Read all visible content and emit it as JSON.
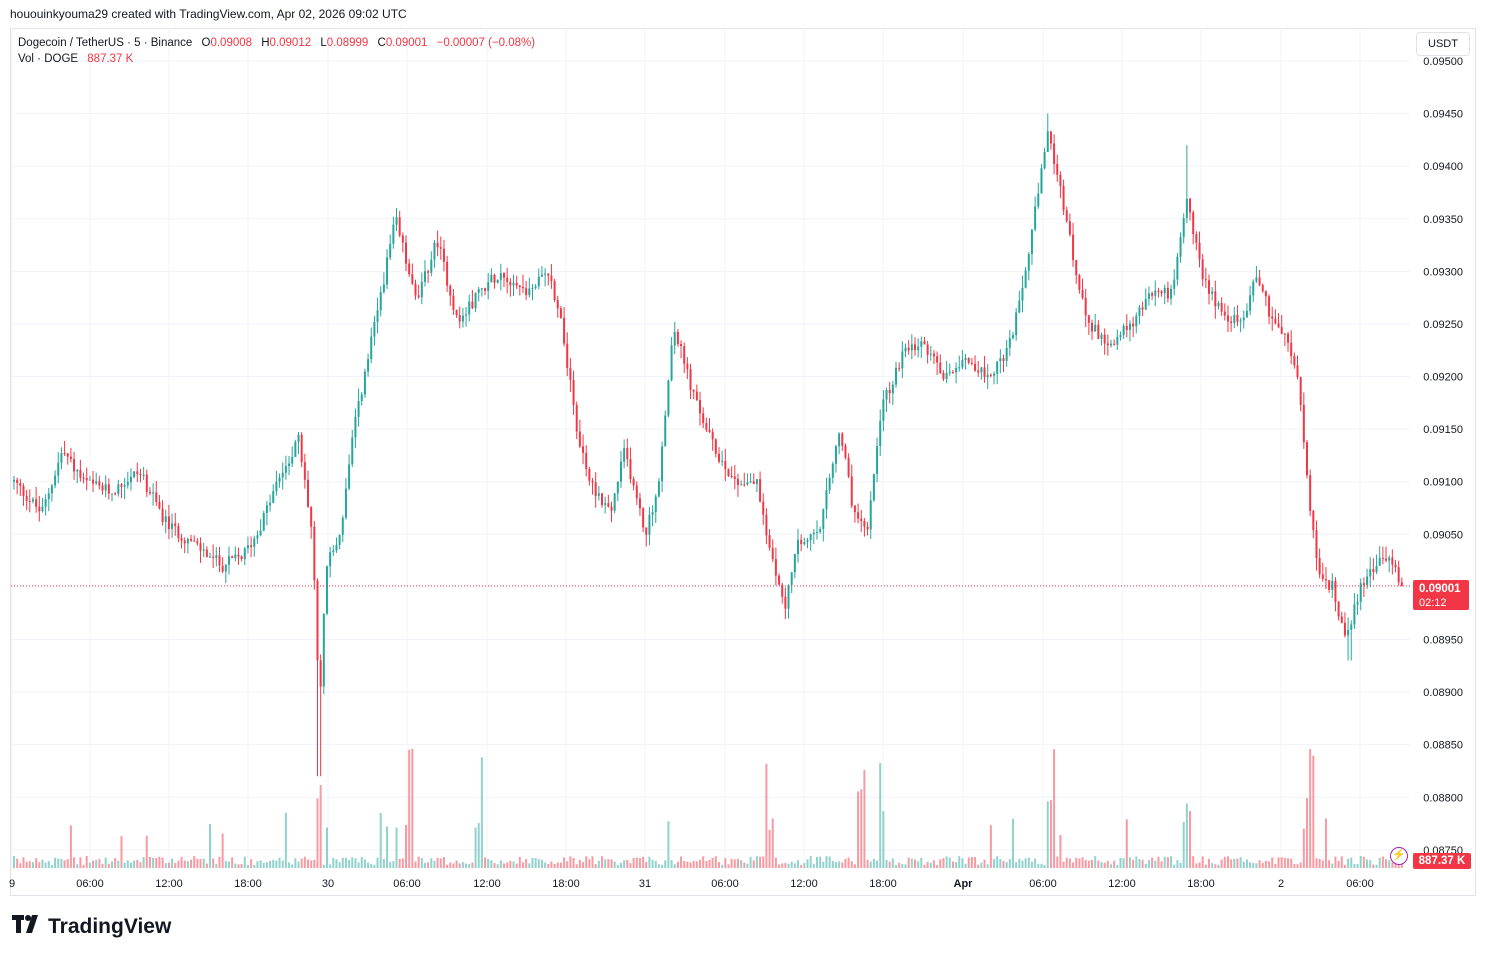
{
  "header": {
    "attribution": "hououinkyouma29 created with TradingView.com, Apr 02, 2026 09:02 UTC"
  },
  "legend": {
    "symbol": "Dogecoin / TetherUS · 5 · Binance",
    "o_label": "O",
    "o_value": "0.09008",
    "h_label": "H",
    "h_value": "0.09012",
    "l_label": "L",
    "l_value": "0.08999",
    "c_label": "C",
    "c_value": "0.09001",
    "change": "−0.00007 (−0.08%)",
    "vol_label": "Vol · DOGE",
    "vol_value": "887.37 K"
  },
  "currency_button": "USDT",
  "price_tag": {
    "price": "0.09001",
    "countdown": "02:12"
  },
  "volume_tag": "887.37 K",
  "footer": {
    "brand": "TradingView"
  },
  "colors": {
    "up": "#26a69a",
    "down": "#f23645",
    "grid": "#f0f3fa",
    "text": "#131722"
  },
  "chart_data": {
    "type": "candlestick",
    "title": "Dogecoin / TetherUS · 5 · Binance",
    "y_ticks": [
      "0.09500",
      "0.09450",
      "0.09400",
      "0.09350",
      "0.09300",
      "0.09250",
      "0.09200",
      "0.09150",
      "0.09100",
      "0.09050",
      "0.09000",
      "0.08950",
      "0.08900",
      "0.08850",
      "0.08800",
      "0.08750"
    ],
    "ylim": [
      0.08747,
      0.095
    ],
    "x_ticks": [
      "9",
      "06:00",
      "12:00",
      "18:00",
      "30",
      "06:00",
      "12:00",
      "18:00",
      "31",
      "06:00",
      "12:00",
      "18:00",
      "Apr",
      "06:00",
      "12:00",
      "18:00",
      "2",
      "06:00"
    ],
    "last_price": 0.09001,
    "anchors": [
      [
        0,
        0.091
      ],
      [
        0.02,
        0.0907
      ],
      [
        0.035,
        0.0913
      ],
      [
        0.05,
        0.091
      ],
      [
        0.07,
        0.0909
      ],
      [
        0.09,
        0.0911
      ],
      [
        0.11,
        0.0906
      ],
      [
        0.13,
        0.0904
      ],
      [
        0.15,
        0.0902
      ],
      [
        0.165,
        0.0903
      ],
      [
        0.175,
        0.0905
      ],
      [
        0.19,
        0.091
      ],
      [
        0.205,
        0.0914
      ],
      [
        0.215,
        0.0905
      ],
      [
        0.22,
        0.0888
      ],
      [
        0.225,
        0.0902
      ],
      [
        0.235,
        0.0905
      ],
      [
        0.245,
        0.0915
      ],
      [
        0.26,
        0.0925
      ],
      [
        0.275,
        0.0935
      ],
      [
        0.29,
        0.0927
      ],
      [
        0.305,
        0.0933
      ],
      [
        0.32,
        0.0925
      ],
      [
        0.335,
        0.0928
      ],
      [
        0.35,
        0.093
      ],
      [
        0.37,
        0.0928
      ],
      [
        0.385,
        0.093
      ],
      [
        0.395,
        0.0925
      ],
      [
        0.405,
        0.0915
      ],
      [
        0.415,
        0.091
      ],
      [
        0.43,
        0.0907
      ],
      [
        0.44,
        0.0913
      ],
      [
        0.455,
        0.0905
      ],
      [
        0.465,
        0.091
      ],
      [
        0.475,
        0.0925
      ],
      [
        0.49,
        0.0918
      ],
      [
        0.505,
        0.0913
      ],
      [
        0.52,
        0.091
      ],
      [
        0.535,
        0.091
      ],
      [
        0.545,
        0.0903
      ],
      [
        0.555,
        0.0898
      ],
      [
        0.565,
        0.0904
      ],
      [
        0.58,
        0.0905
      ],
      [
        0.595,
        0.0915
      ],
      [
        0.605,
        0.0907
      ],
      [
        0.615,
        0.0905
      ],
      [
        0.625,
        0.0917
      ],
      [
        0.64,
        0.0922
      ],
      [
        0.655,
        0.0923
      ],
      [
        0.67,
        0.092
      ],
      [
        0.685,
        0.0922
      ],
      [
        0.7,
        0.092
      ],
      [
        0.715,
        0.0922
      ],
      [
        0.725,
        0.0927
      ],
      [
        0.735,
        0.0935
      ],
      [
        0.745,
        0.0943
      ],
      [
        0.755,
        0.0937
      ],
      [
        0.765,
        0.093
      ],
      [
        0.775,
        0.0925
      ],
      [
        0.79,
        0.0923
      ],
      [
        0.805,
        0.0925
      ],
      [
        0.82,
        0.0928
      ],
      [
        0.835,
        0.0928
      ],
      [
        0.845,
        0.0937
      ],
      [
        0.855,
        0.093
      ],
      [
        0.87,
        0.0926
      ],
      [
        0.885,
        0.0925
      ],
      [
        0.895,
        0.093
      ],
      [
        0.905,
        0.0926
      ],
      [
        0.915,
        0.0924
      ],
      [
        0.925,
        0.092
      ],
      [
        0.932,
        0.091
      ],
      [
        0.94,
        0.0901
      ],
      [
        0.95,
        0.09
      ],
      [
        0.96,
        0.0895
      ],
      [
        0.97,
        0.09
      ],
      [
        0.98,
        0.0902
      ],
      [
        0.99,
        0.0903
      ],
      [
        1,
        0.09001
      ]
    ]
  }
}
